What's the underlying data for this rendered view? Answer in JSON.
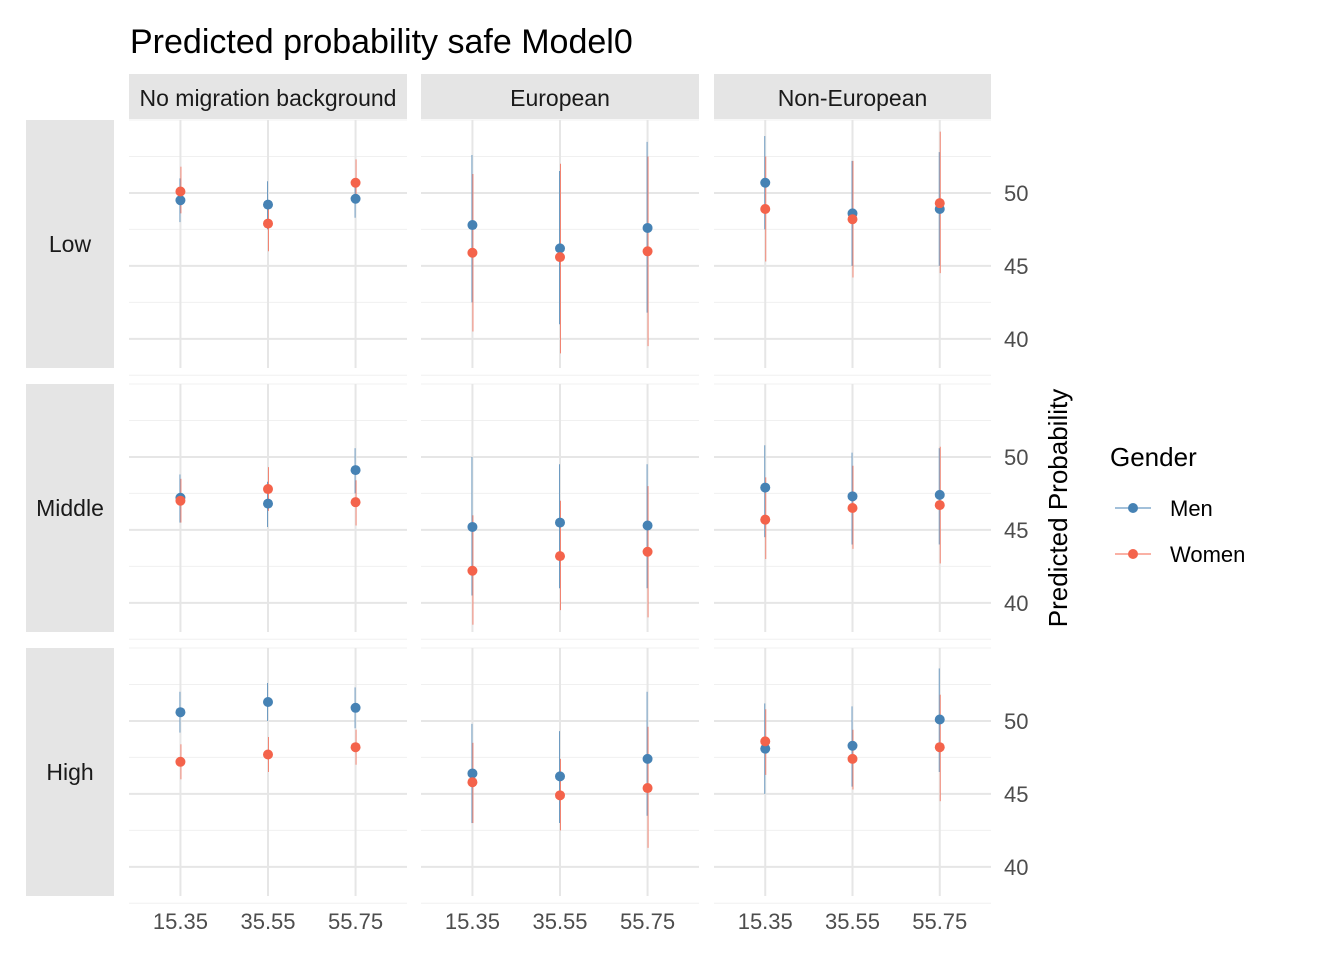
{
  "chart_data": {
    "type": "scatter",
    "title": "Predicted probability safe Model0",
    "ylabel": "Predicted Probability",
    "xlabel": "",
    "x": [
      "15.35",
      "35.55",
      "55.75"
    ],
    "col_facets": [
      "No migration background",
      "European",
      "Non-European"
    ],
    "row_facets": [
      "Low",
      "Middle",
      "High"
    ],
    "ylim": [
      38,
      55
    ],
    "yticks": [
      40,
      45,
      50
    ],
    "grid": true,
    "legend": {
      "title": "Gender",
      "position": "right"
    },
    "series": [
      {
        "name": "Men",
        "color": "#4682b4"
      },
      {
        "name": "Women",
        "color": "#f4634b"
      }
    ],
    "panels": [
      {
        "row": "Low",
        "col": "No migration background",
        "values": {
          "Men": [
            49.5,
            49.2,
            49.6
          ],
          "Women": [
            50.1,
            47.9,
            50.7
          ]
        },
        "ci": {
          "Men": [
            [
              48,
              51
            ],
            [
              47.5,
              50.8
            ],
            [
              48.3,
              50.9
            ]
          ],
          "Women": [
            [
              48.6,
              51.8
            ],
            [
              46,
              49.5
            ],
            [
              49.3,
              52.3
            ]
          ]
        }
      },
      {
        "row": "Low",
        "col": "European",
        "values": {
          "Men": [
            47.8,
            46.2,
            47.6
          ],
          "Women": [
            45.9,
            45.6,
            46.0
          ]
        },
        "ci": {
          "Men": [
            [
              42.5,
              52.6
            ],
            [
              41,
              51.5
            ],
            [
              41.8,
              53.5
            ]
          ],
          "Women": [
            [
              40.5,
              51.3
            ],
            [
              39,
              52
            ],
            [
              39.5,
              52.5
            ]
          ]
        }
      },
      {
        "row": "Low",
        "col": "Non-European",
        "values": {
          "Men": [
            50.7,
            48.6,
            48.9
          ],
          "Women": [
            48.9,
            48.2,
            49.3
          ]
        },
        "ci": {
          "Men": [
            [
              47.5,
              53.9
            ],
            [
              45,
              52.2
            ],
            [
              45,
              52.8
            ]
          ],
          "Women": [
            [
              45.3,
              52.5
            ],
            [
              44.2,
              52.2
            ],
            [
              44.5,
              54.2
            ]
          ]
        }
      },
      {
        "row": "Middle",
        "col": "No migration background",
        "values": {
          "Men": [
            47.2,
            46.8,
            49.1
          ],
          "Women": [
            47.0,
            47.8,
            46.9
          ]
        },
        "ci": {
          "Men": [
            [
              45.5,
              48.8
            ],
            [
              45.2,
              48.3
            ],
            [
              47.5,
              50.6
            ]
          ],
          "Women": [
            [
              45.5,
              48.5
            ],
            [
              46.3,
              49.3
            ],
            [
              45.3,
              48.4
            ]
          ]
        }
      },
      {
        "row": "Middle",
        "col": "European",
        "values": {
          "Men": [
            45.2,
            45.5,
            45.3
          ],
          "Women": [
            42.2,
            43.2,
            43.5
          ]
        },
        "ci": {
          "Men": [
            [
              40.5,
              50
            ],
            [
              41,
              49.5
            ],
            [
              41,
              49.5
            ]
          ],
          "Women": [
            [
              38.5,
              46
            ],
            [
              39.5,
              47
            ],
            [
              39,
              48
            ]
          ]
        }
      },
      {
        "row": "Middle",
        "col": "Non-European",
        "values": {
          "Men": [
            47.9,
            47.3,
            47.4
          ],
          "Women": [
            45.7,
            46.5,
            46.7
          ]
        },
        "ci": {
          "Men": [
            [
              44.5,
              50.8
            ],
            [
              44,
              50.3
            ],
            [
              44,
              50.6
            ]
          ],
          "Women": [
            [
              43,
              48.6
            ],
            [
              43.7,
              49.4
            ],
            [
              42.7,
              50.7
            ]
          ]
        }
      },
      {
        "row": "High",
        "col": "No migration background",
        "values": {
          "Men": [
            50.6,
            51.3,
            50.9
          ],
          "Women": [
            47.2,
            47.7,
            48.2
          ]
        },
        "ci": {
          "Men": [
            [
              49.2,
              52
            ],
            [
              50,
              52.6
            ],
            [
              49.5,
              52.3
            ]
          ],
          "Women": [
            [
              46,
              48.4
            ],
            [
              46.5,
              48.9
            ],
            [
              47,
              49.4
            ]
          ]
        }
      },
      {
        "row": "High",
        "col": "European",
        "values": {
          "Men": [
            46.4,
            46.2,
            47.4
          ],
          "Women": [
            45.8,
            44.9,
            45.4
          ]
        },
        "ci": {
          "Men": [
            [
              43,
              49.8
            ],
            [
              43,
              49.3
            ],
            [
              43.5,
              52
            ]
          ],
          "Women": [
            [
              43,
              48.5
            ],
            [
              42.5,
              47.4
            ],
            [
              41.3,
              49.6
            ]
          ]
        }
      },
      {
        "row": "High",
        "col": "Non-European",
        "values": {
          "Men": [
            48.1,
            48.3,
            50.1
          ],
          "Women": [
            48.6,
            47.4,
            48.2
          ]
        },
        "ci": {
          "Men": [
            [
              45,
              51.2
            ],
            [
              45.5,
              51
            ],
            [
              46.5,
              53.6
            ]
          ],
          "Women": [
            [
              46.3,
              50.8
            ],
            [
              45.3,
              49.4
            ],
            [
              44.5,
              51.8
            ]
          ]
        }
      }
    ]
  }
}
